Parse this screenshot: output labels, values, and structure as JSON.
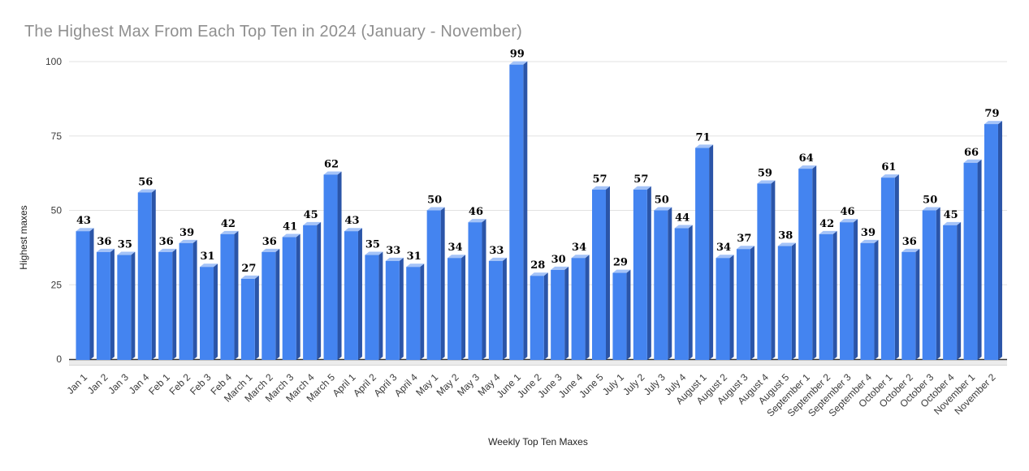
{
  "chart_data": {
    "type": "bar",
    "title": "The Highest Max From Each Top Ten in 2024 (January - November)",
    "xlabel": "Weekly Top Ten Maxes",
    "ylabel": "Highest maxes",
    "categories": [
      "Jan 1",
      "Jan 2",
      "Jan 3",
      "Jan 4",
      "Feb 1",
      "Feb 2",
      "Feb 3",
      "Feb 4",
      "March 1",
      "March 2",
      "March 3",
      "March 4",
      "March 5",
      "April 1",
      "April 2",
      "April 3",
      "April 4",
      "May 1",
      "May 2",
      "May 3",
      "May 4",
      "June 1",
      "June 2",
      "June 3",
      "June 4",
      "June 5",
      "July 1",
      "July 2",
      "July 3",
      "July 4",
      "August 1",
      "August 2",
      "August 3",
      "August 4",
      "August 5",
      "September 1",
      "September 2",
      "September 3",
      "September 4",
      "October 1",
      "October 2",
      "October 3",
      "October 4",
      "November 1",
      "November 2"
    ],
    "values": [
      43,
      36,
      35,
      56,
      36,
      39,
      31,
      42,
      27,
      36,
      41,
      45,
      62,
      43,
      35,
      33,
      31,
      50,
      34,
      46,
      33,
      99,
      28,
      30,
      34,
      57,
      29,
      57,
      50,
      44,
      71,
      34,
      37,
      59,
      38,
      64,
      42,
      46,
      39,
      61,
      36,
      50,
      45,
      66,
      79
    ],
    "ylim": [
      0,
      100
    ],
    "yticks": [
      0,
      25,
      50,
      75,
      100
    ],
    "grid": true,
    "legend": "none",
    "bar_style": "3d-column",
    "colors": {
      "bar_face": "#4484f0",
      "bar_side": "#2b55a8",
      "bar_top": "#a4c3f8",
      "gridline": "#e2e2e2",
      "baseline": "#333333",
      "floor": "#ececec",
      "floor_edge": "#d6d6d6",
      "title_text": "#8f8f8f",
      "axis_title_text": "#222222",
      "tick_text": "#3a3a3a",
      "data_label_text": "#000000"
    }
  }
}
